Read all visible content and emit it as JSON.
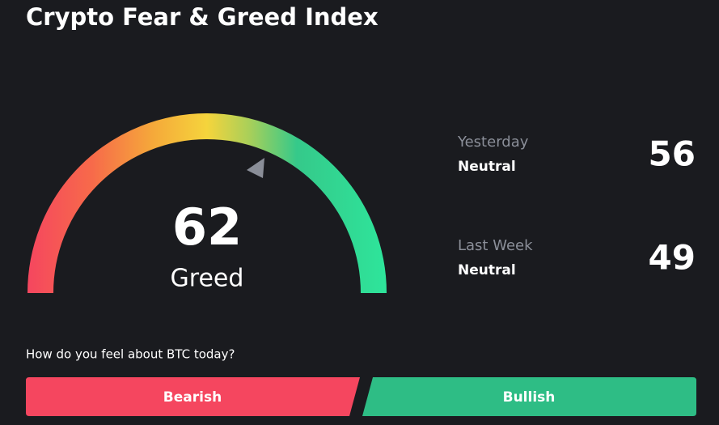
{
  "header": {
    "title": "Crypto Fear & Greed Index"
  },
  "gauge": {
    "value": 62,
    "label": "Greed"
  },
  "history": [
    {
      "period": "Yesterday",
      "status": "Neutral",
      "value": 56
    },
    {
      "period": "Last Week",
      "status": "Neutral",
      "value": 49
    }
  ],
  "poll": {
    "question": "How do you feel about BTC today?",
    "buttons": [
      "Bearish",
      "Bullish"
    ]
  }
}
